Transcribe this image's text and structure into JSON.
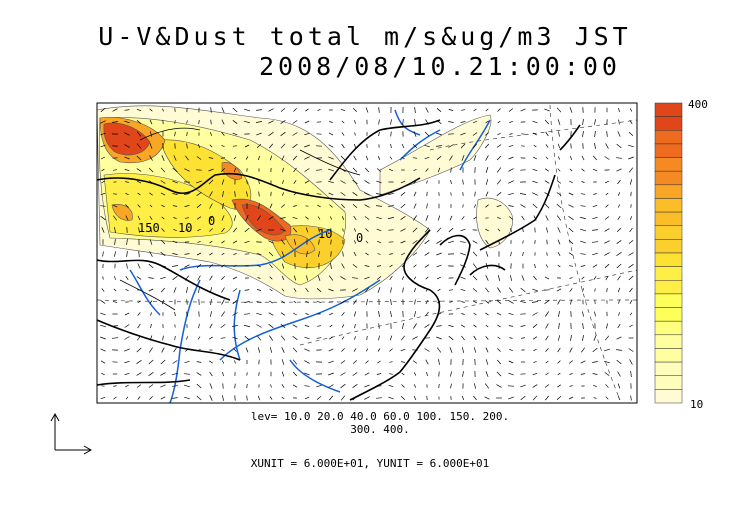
{
  "title": "U-V&Dust total m/s&ug/m3 JST",
  "timestamp": "2008/08/10.21:00:00",
  "colorbar": {
    "max_label": "400",
    "min_label": "10",
    "colors": [
      "#e0461a",
      "#ee6a1e",
      "#f58a22",
      "#f8a624",
      "#fbbd28",
      "#fcd02c",
      "#fde234",
      "#feee46",
      "#ffff5a",
      "#ffff80",
      "#ffffa0",
      "#fffdbc",
      "#fffbd4"
    ]
  },
  "levels_line1": "lev= 10.0 20.0 40.0 60.0 100. 150. 200.",
  "levels_line2": "300. 400.",
  "units_text": "XUNIT = 6.000E+01, YUNIT = 6.000E+01",
  "contour_labels": [
    "150",
    "10",
    "10",
    "0",
    "0"
  ],
  "colors": {
    "rivers": "#1560d8",
    "coast": "#000000"
  }
}
